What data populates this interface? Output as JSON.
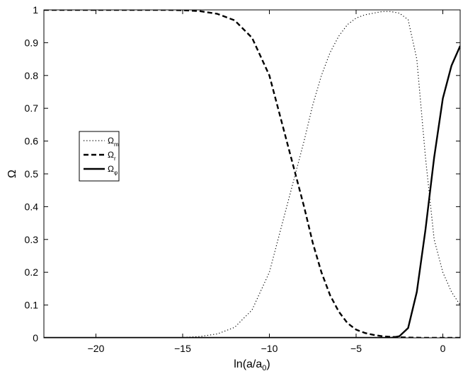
{
  "chart_data": {
    "type": "line",
    "xlabel": {
      "text": "ln(a/a",
      "sub": "0",
      "close": ")"
    },
    "ylabel": "Ω",
    "xlim": [
      -23,
      1
    ],
    "ylim": [
      0,
      1
    ],
    "xticks": [
      -20,
      -15,
      -10,
      -5,
      0
    ],
    "xtick_labels": [
      "−20",
      "−15",
      "−10",
      "−5",
      "0"
    ],
    "yticks": [
      0,
      0.1,
      0.2,
      0.3,
      0.4,
      0.5,
      0.6,
      0.7,
      0.8,
      0.9,
      1
    ],
    "ytick_labels": [
      "0",
      "0.1",
      "0.2",
      "0.3",
      "0.4",
      "0.5",
      "0.6",
      "0.7",
      "0.8",
      "0.9",
      "1"
    ],
    "grid": false,
    "legend": {
      "placement": "middle-left"
    },
    "series": [
      {
        "name": "Ω",
        "sub": "m",
        "style": "dotted",
        "color": "#000000",
        "x": [
          -23,
          -18,
          -16,
          -15,
          -14,
          -13,
          -12,
          -11,
          -10,
          -9,
          -8.5,
          -8,
          -7.5,
          -7,
          -6.5,
          -6,
          -5.5,
          -5,
          -4.5,
          -4,
          -3.5,
          -3,
          -2.5,
          -2,
          -1.5,
          -1,
          -0.5,
          0,
          0.5,
          1
        ],
        "y": [
          0,
          0,
          0,
          0.001,
          0.004,
          0.012,
          0.032,
          0.085,
          0.2,
          0.4,
          0.5,
          0.6,
          0.71,
          0.8,
          0.87,
          0.92,
          0.955,
          0.975,
          0.985,
          0.99,
          0.995,
          0.995,
          0.99,
          0.97,
          0.85,
          0.55,
          0.3,
          0.2,
          0.14,
          0.1
        ]
      },
      {
        "name": "Ω",
        "sub": "r",
        "style": "dashed",
        "color": "#000000",
        "x": [
          -23,
          -18,
          -16,
          -15,
          -14,
          -13,
          -12,
          -11,
          -10,
          -9,
          -8.5,
          -8,
          -7.5,
          -7,
          -6.5,
          -6,
          -5.5,
          -5,
          -4.5,
          -4,
          -3.5,
          -3,
          -2.5,
          -2,
          -1,
          0,
          1
        ],
        "y": [
          1,
          1,
          1,
          0.999,
          0.996,
          0.988,
          0.968,
          0.915,
          0.8,
          0.6,
          0.5,
          0.4,
          0.29,
          0.2,
          0.13,
          0.08,
          0.045,
          0.025,
          0.015,
          0.009,
          0.005,
          0.003,
          0.002,
          0.001,
          0,
          0,
          0
        ]
      },
      {
        "name": "Ω",
        "sub": "φ",
        "style": "solid",
        "color": "#000000",
        "x": [
          -23,
          -4,
          -3,
          -2.5,
          -2,
          -1.5,
          -1,
          -0.5,
          0,
          0.5,
          1
        ],
        "y": [
          0,
          0,
          0,
          0.005,
          0.03,
          0.14,
          0.33,
          0.55,
          0.73,
          0.83,
          0.89
        ]
      }
    ]
  }
}
